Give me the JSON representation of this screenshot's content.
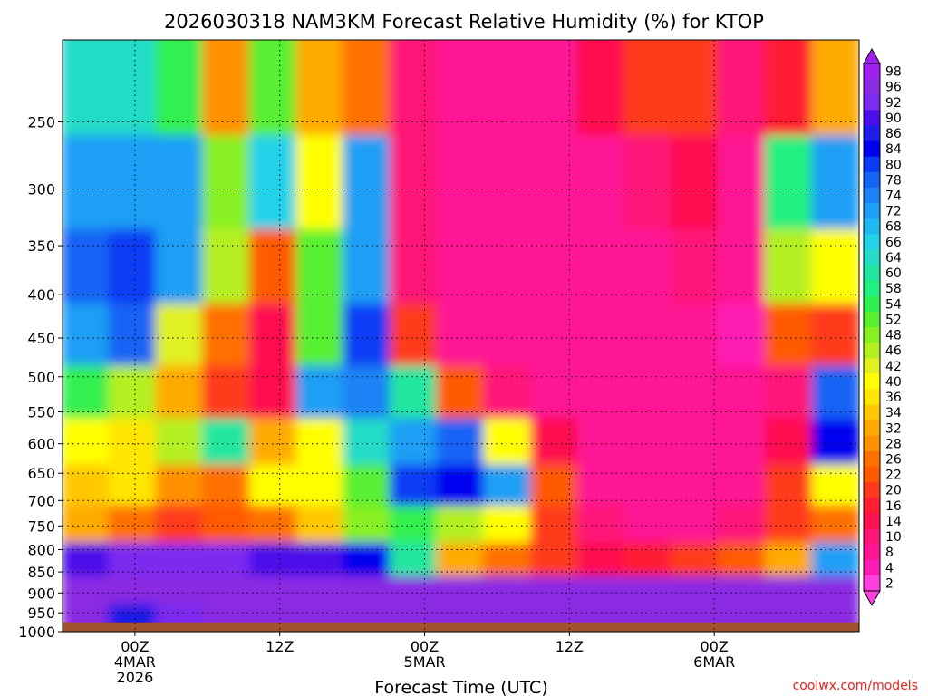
{
  "chart_data": {
    "type": "heatmap",
    "title": "2026030318 NAM3KM Forecast Relative Humidity (%) for KTOP",
    "xlabel": "Forecast Time (UTC)",
    "ylabel": "",
    "y_scale": "log-pressure",
    "ylim": [
      1000,
      200
    ],
    "y_ticks": [
      "250",
      "300",
      "350",
      "400",
      "450",
      "500",
      "550",
      "600",
      "650",
      "700",
      "750",
      "800",
      "850",
      "900",
      "950",
      "1000"
    ],
    "x_range_hours": [
      -6,
      60
    ],
    "x_ticks": [
      {
        "hour": 0,
        "lines": [
          "00Z",
          "4MAR",
          "2026"
        ]
      },
      {
        "hour": 12,
        "lines": [
          "12Z"
        ]
      },
      {
        "hour": 24,
        "lines": [
          "00Z",
          "5MAR"
        ]
      },
      {
        "hour": 36,
        "lines": [
          "12Z"
        ]
      },
      {
        "hour": 48,
        "lines": [
          "00Z",
          "6MAR"
        ]
      }
    ],
    "grid": true,
    "ground_pressure": 975,
    "colorbar": {
      "labels": [
        "98",
        "96",
        "92",
        "90",
        "86",
        "84",
        "80",
        "78",
        "74",
        "72",
        "68",
        "66",
        "64",
        "60",
        "58",
        "54",
        "52",
        "48",
        "46",
        "42",
        "40",
        "36",
        "34",
        "32",
        "28",
        "26",
        "22",
        "20",
        "16",
        "14",
        "10",
        "8",
        "4",
        "2"
      ],
      "colors": [
        "#a020f0",
        "#8a2be2",
        "#7b2cf0",
        "#4b0eea",
        "#1e1ee8",
        "#0000f0",
        "#0a3cf5",
        "#1464f5",
        "#1a82f5",
        "#1e9ff5",
        "#20b8f0",
        "#24d2e8",
        "#24dcc8",
        "#22e6a0",
        "#20f080",
        "#30f050",
        "#58f030",
        "#88f020",
        "#b4f020",
        "#e0f020",
        "#ffff00",
        "#ffe600",
        "#ffc800",
        "#ffaa00",
        "#ff9000",
        "#ff7000",
        "#ff5a00",
        "#ff3a1e",
        "#ff1e32",
        "#ff1050",
        "#ff1478",
        "#ff1494",
        "#ff1cb4",
        "#ff40e0"
      ]
    },
    "rh_by_level": [
      {
        "pressure": 225,
        "values": [
          62,
          64,
          55,
          28,
          52,
          30,
          26,
          10,
          8,
          6,
          8,
          14,
          18,
          20,
          10,
          16,
          30
        ]
      },
      {
        "pressure": 300,
        "values": [
          70,
          72,
          70,
          48,
          66,
          40,
          70,
          10,
          6,
          6,
          6,
          8,
          10,
          14,
          8,
          58,
          70
        ]
      },
      {
        "pressure": 375,
        "values": [
          78,
          80,
          72,
          46,
          22,
          52,
          72,
          10,
          6,
          6,
          6,
          6,
          6,
          10,
          6,
          46,
          40
        ]
      },
      {
        "pressure": 450,
        "values": [
          72,
          76,
          42,
          26,
          12,
          50,
          80,
          18,
          8,
          6,
          6,
          6,
          6,
          8,
          4,
          22,
          18
        ]
      },
      {
        "pressure": 525,
        "values": [
          54,
          46,
          30,
          20,
          14,
          72,
          74,
          60,
          22,
          10,
          8,
          6,
          6,
          6,
          6,
          10,
          78
        ]
      },
      {
        "pressure": 600,
        "values": [
          40,
          36,
          46,
          60,
          30,
          40,
          64,
          72,
          76,
          40,
          12,
          6,
          6,
          6,
          6,
          14,
          82
        ]
      },
      {
        "pressure": 675,
        "values": [
          34,
          36,
          28,
          24,
          40,
          38,
          52,
          80,
          84,
          70,
          22,
          6,
          6,
          6,
          8,
          20,
          40
        ]
      },
      {
        "pressure": 750,
        "values": [
          30,
          24,
          20,
          22,
          24,
          34,
          48,
          54,
          46,
          38,
          20,
          10,
          8,
          8,
          10,
          20,
          24
        ]
      },
      {
        "pressure": 825,
        "values": [
          90,
          92,
          92,
          92,
          90,
          88,
          84,
          60,
          30,
          24,
          18,
          14,
          16,
          18,
          22,
          30,
          72
        ]
      },
      {
        "pressure": 900,
        "values": [
          96,
          94,
          96,
          94,
          96,
          96,
          96,
          94,
          96,
          94,
          96,
          96,
          96,
          94,
          96,
          94,
          96
        ]
      },
      {
        "pressure": 960,
        "values": [
          94,
          86,
          92,
          96,
          96,
          96,
          96,
          96,
          96,
          96,
          96,
          96,
          96,
          96,
          96,
          96,
          96
        ]
      }
    ]
  },
  "credit": "coolwx.com/models"
}
